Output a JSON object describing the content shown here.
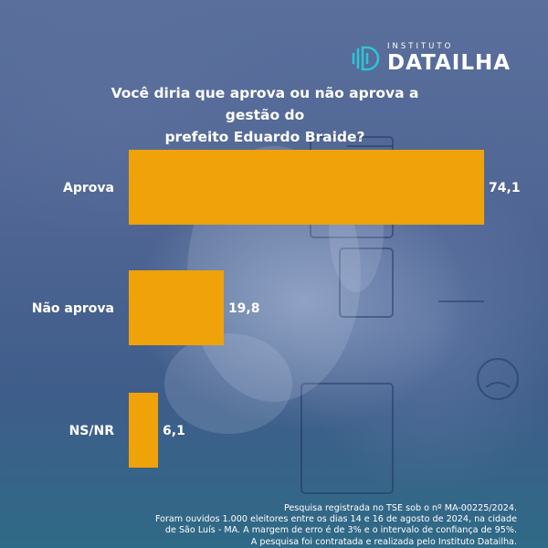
{
  "logo": {
    "small": "INSTITUTO",
    "big": "DATAILHA"
  },
  "title_lines": [
    "Você diria que aprova ou não aprova a gestão do",
    "prefeito Eduardo Braide?"
  ],
  "chart_data": {
    "type": "bar",
    "orientation": "horizontal",
    "title": "Você diria que aprova ou não aprova a gestão do prefeito Eduardo Braide?",
    "categories": [
      "Aprova",
      "Não aprova",
      "NS/NR"
    ],
    "values": [
      74.1,
      19.8,
      6.1
    ],
    "value_labels": [
      "74,1",
      "19,8",
      "6,1"
    ],
    "xlim": [
      0,
      100
    ],
    "grid": false,
    "legend": "none",
    "bar_color": "#f0a20a"
  },
  "footer_lines": [
    "Pesquisa registrada no TSE sob o nº MA-00225/2024.",
    "Foram ouvidos 1.000 eleitores entre os dias 14 e 16 de agosto de 2024, na cidade",
    "de São Luís - MA. A margem de erro é de 3% e o intervalo de confiança de 95%.",
    "A pesquisa foi contratada e realizada pelo Instituto Datailha."
  ],
  "colors": {
    "bar": "#f0a20a",
    "text": "#ffffff",
    "logo_accent": "#2ec4d6"
  }
}
